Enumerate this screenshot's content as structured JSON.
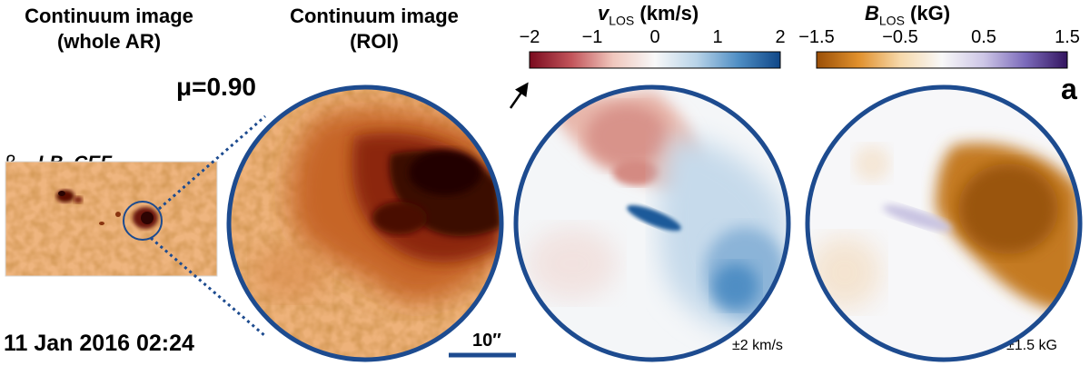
{
  "titles": {
    "whole_line1": "Continuum image",
    "whole_line2": "(whole AR)",
    "roi_line1": "Continuum image",
    "roi_line2": "(ROI)"
  },
  "mu_label": "μ=0.90",
  "class_prefix": "β – ",
  "class_name": "LB–CEF",
  "date_label": "11 Jan 2016 02:24",
  "scale_bar_label": "10″",
  "panel_letter": "a",
  "velocity_colorbar": {
    "label_main": "v",
    "label_sub": "LOS",
    "label_unit": " (km/s)",
    "ticks": [
      "−2",
      "−1",
      "0",
      "1",
      "2"
    ],
    "tick_values": [
      -2,
      -1,
      0,
      1,
      2
    ],
    "range": [
      -2,
      2
    ],
    "colors": [
      "#7a0a1e",
      "#c2545a",
      "#f0c7bd",
      "#f8f8f8",
      "#b8d3e8",
      "#4f8ec4",
      "#0f4788"
    ],
    "saturation_label": "±2 km/s"
  },
  "field_colorbar": {
    "label_main": "B",
    "label_sub": "LOS",
    "label_unit": " (kG)",
    "ticks": [
      "−1.5",
      "−0.5",
      "0.5",
      "1.5"
    ],
    "tick_values": [
      -1.5,
      -0.5,
      0.5,
      1.5
    ],
    "range": [
      -1.5,
      1.5
    ],
    "colors": [
      "#9a4f07",
      "#e0902c",
      "#f6d8aa",
      "#f8f8f8",
      "#cdc6e6",
      "#7b6aba",
      "#33145f"
    ],
    "saturation_label": "±1.5 kG"
  },
  "colors": {
    "circle_border": "#1d4b8f",
    "continuum_bg": "#eeb27a",
    "umbra": "#3a0705",
    "penumbra": "#b4541c"
  }
}
